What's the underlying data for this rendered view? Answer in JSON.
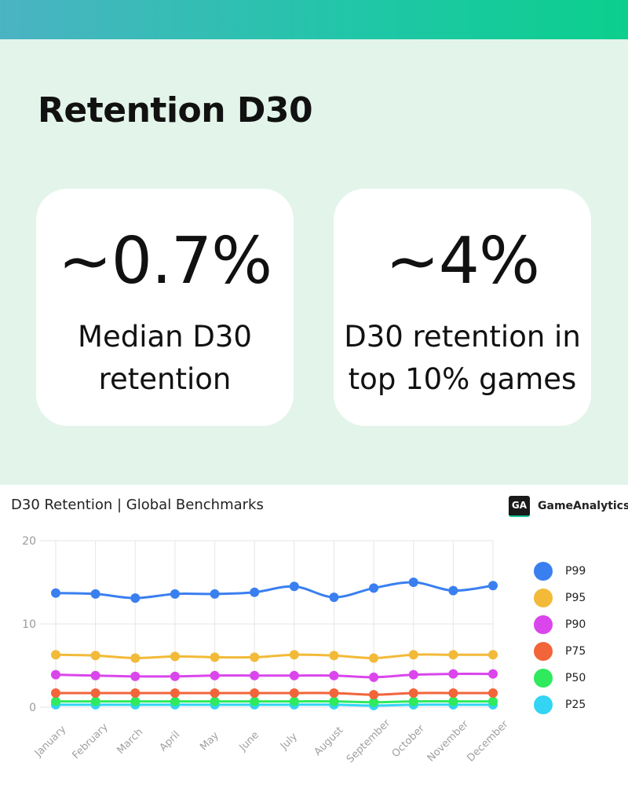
{
  "header": {
    "title": "Retention D30"
  },
  "cards": [
    {
      "value": "~0.7%",
      "line1": "Median D30",
      "line2": "retention"
    },
    {
      "value": "~4%",
      "line1": "D30 retention in",
      "line2": "top 10% games"
    }
  ],
  "chart_header": {
    "title": "D30 Retention | Global Benchmarks",
    "brand_logo": "GA",
    "brand_name": "GameAnalytics"
  },
  "colors": {
    "P99": "#3a7ff0",
    "P95": "#f2ba38",
    "P90": "#da46ec",
    "P75": "#f2643a",
    "P50": "#2eea5c",
    "P25": "#33d4f4",
    "accent": "#18c99a"
  },
  "chart_data": {
    "type": "line",
    "title": "D30 Retention | Global Benchmarks",
    "xlabel": "",
    "ylabel": "",
    "ylim": [
      0,
      20
    ],
    "yticks": [
      0,
      10,
      20
    ],
    "grid": true,
    "legend": "right",
    "categories": [
      "January",
      "February",
      "March",
      "April",
      "May",
      "June",
      "July",
      "August",
      "September",
      "October",
      "November",
      "December"
    ],
    "series": [
      {
        "name": "P99",
        "color": "#3a7ff0",
        "values": [
          13.7,
          13.6,
          13.1,
          13.6,
          13.6,
          13.8,
          14.5,
          13.2,
          14.3,
          15.0,
          14.0,
          14.6
        ]
      },
      {
        "name": "P95",
        "color": "#f2ba38",
        "values": [
          6.3,
          6.2,
          5.9,
          6.1,
          6.0,
          6.0,
          6.3,
          6.2,
          5.9,
          6.3,
          6.3,
          6.3
        ]
      },
      {
        "name": "P90",
        "color": "#da46ec",
        "values": [
          3.9,
          3.8,
          3.7,
          3.7,
          3.8,
          3.8,
          3.8,
          3.8,
          3.6,
          3.9,
          4.0,
          4.0
        ]
      },
      {
        "name": "P75",
        "color": "#f2643a",
        "values": [
          1.7,
          1.7,
          1.7,
          1.7,
          1.7,
          1.7,
          1.7,
          1.7,
          1.5,
          1.7,
          1.7,
          1.7
        ]
      },
      {
        "name": "P50",
        "color": "#2eea5c",
        "values": [
          0.7,
          0.7,
          0.7,
          0.7,
          0.7,
          0.7,
          0.7,
          0.7,
          0.6,
          0.7,
          0.7,
          0.7
        ]
      },
      {
        "name": "P25",
        "color": "#33d4f4",
        "values": [
          0.3,
          0.3,
          0.3,
          0.3,
          0.3,
          0.3,
          0.3,
          0.3,
          0.2,
          0.3,
          0.3,
          0.3
        ]
      }
    ]
  }
}
